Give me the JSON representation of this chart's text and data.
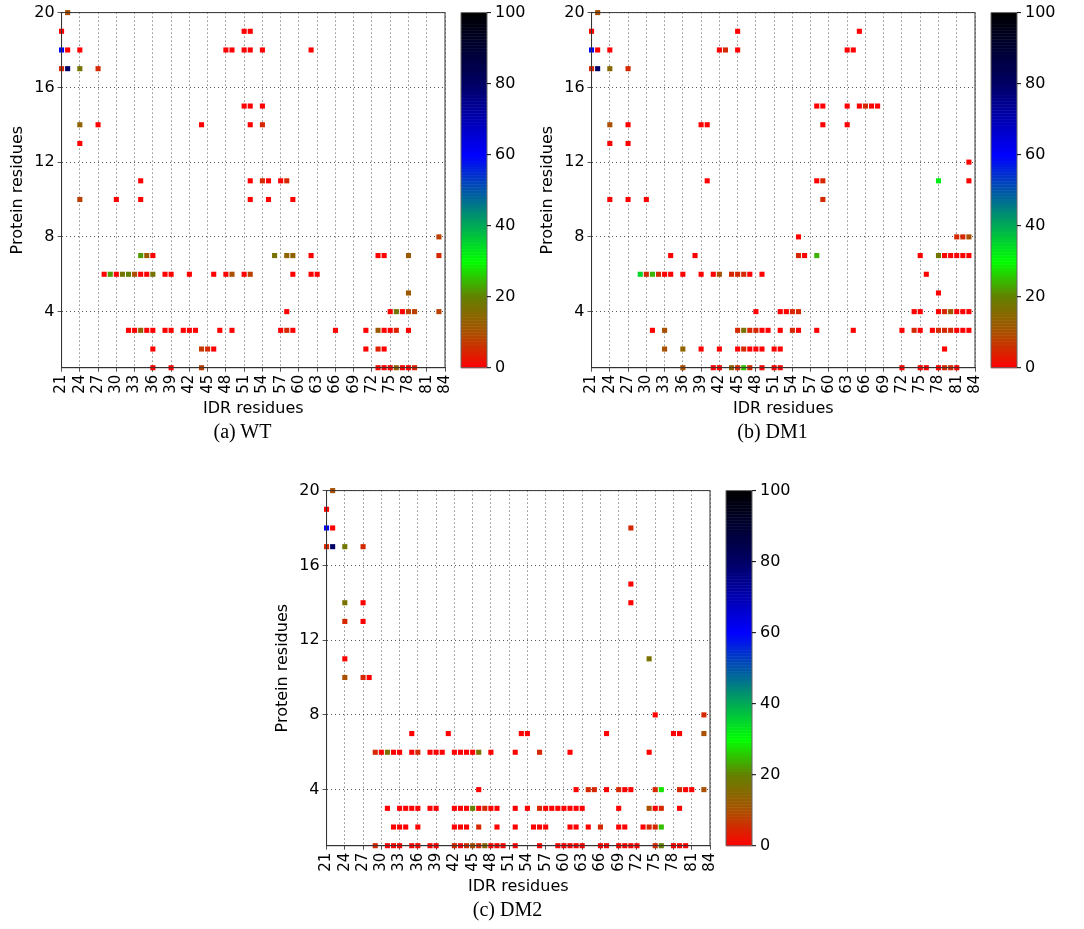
{
  "chart_data": [
    {
      "type": "scatter",
      "xlabel": "IDR residues",
      "ylabel": "Protein residues",
      "annotations": [
        "(a) WT"
      ],
      "marker": "square",
      "grid": true,
      "xlim": [
        21,
        84
      ],
      "xticks": [
        21,
        24,
        27,
        30,
        33,
        36,
        39,
        42,
        45,
        48,
        51,
        54,
        57,
        60,
        63,
        66,
        69,
        72,
        75,
        78,
        81,
        84
      ],
      "ylim": [
        1,
        20
      ],
      "yticks": [
        4,
        8,
        12,
        16,
        20
      ],
      "clim": [
        0,
        100
      ],
      "cticks": [
        0,
        20,
        40,
        60,
        80,
        100
      ],
      "x": [
        22,
        21,
        51,
        52,
        21,
        22,
        24,
        48,
        49,
        51,
        52,
        54,
        62,
        21,
        22,
        24,
        27,
        51,
        52,
        54,
        24,
        27,
        44,
        52,
        54,
        24,
        34,
        52,
        54,
        55,
        57,
        58,
        24,
        30,
        34,
        52,
        55,
        59,
        83,
        34,
        35,
        36,
        56,
        58,
        59,
        62,
        73,
        74,
        78,
        83,
        28,
        29,
        30,
        31,
        32,
        33,
        34,
        35,
        36,
        38,
        39,
        42,
        46,
        48,
        49,
        51,
        52,
        59,
        62,
        63,
        78,
        58,
        75,
        76,
        77,
        78,
        79,
        83,
        32,
        33,
        34,
        35,
        36,
        38,
        39,
        41,
        42,
        43,
        47,
        49,
        57,
        58,
        59,
        66,
        71,
        73,
        74,
        75,
        76,
        78,
        36,
        44,
        45,
        46,
        71,
        73,
        74,
        36,
        39,
        44,
        73,
        74,
        75,
        76,
        77,
        78,
        79
      ],
      "values": [
        20,
        19,
        19,
        19,
        18,
        18,
        18,
        18,
        18,
        18,
        18,
        18,
        18,
        17,
        17,
        17,
        17,
        15,
        15,
        15,
        14,
        14,
        14,
        14,
        14,
        13,
        11,
        11,
        11,
        11,
        11,
        11,
        10,
        10,
        10,
        10,
        10,
        10,
        8,
        7,
        7,
        7,
        7,
        7,
        7,
        7,
        7,
        7,
        7,
        7,
        6,
        6,
        6,
        6,
        6,
        6,
        6,
        6,
        6,
        6,
        6,
        6,
        6,
        6,
        6,
        6,
        6,
        6,
        6,
        6,
        5,
        4,
        4,
        4,
        4,
        4,
        4,
        4,
        3,
        3,
        3,
        3,
        3,
        3,
        3,
        3,
        3,
        3,
        3,
        3,
        3,
        3,
        3,
        3,
        3,
        3,
        3,
        3,
        3,
        3,
        2,
        2,
        2,
        2,
        2,
        2,
        2,
        1,
        1,
        1,
        1,
        1,
        1,
        1,
        1,
        1,
        1
      ],
      "cvalues": [
        10,
        0,
        0,
        0,
        60,
        0,
        0,
        0,
        0,
        0,
        0,
        0,
        0,
        5,
        80,
        18,
        5,
        0,
        0,
        0,
        14,
        0,
        0,
        0,
        5,
        0,
        0,
        0,
        5,
        0,
        0,
        5,
        8,
        0,
        0,
        0,
        0,
        0,
        8,
        22,
        12,
        0,
        17,
        14,
        14,
        0,
        0,
        0,
        12,
        5,
        0,
        22,
        0,
        18,
        20,
        10,
        0,
        0,
        17,
        0,
        0,
        0,
        0,
        0,
        10,
        0,
        8,
        0,
        0,
        0,
        12,
        0,
        0,
        18,
        0,
        8,
        8,
        8,
        0,
        0,
        14,
        0,
        0,
        0,
        0,
        0,
        0,
        0,
        0,
        0,
        0,
        5,
        0,
        0,
        0,
        12,
        0,
        0,
        4,
        0,
        0,
        7,
        5,
        0,
        0,
        4,
        0,
        0,
        0,
        8,
        0,
        0,
        0,
        14,
        0,
        0,
        4
      ]
    },
    {
      "type": "scatter",
      "xlabel": "IDR residues",
      "ylabel": "Protein residues",
      "annotations": [
        "(b) DM1"
      ],
      "marker": "square",
      "grid": true,
      "xlim": [
        21,
        84
      ],
      "xticks": [
        21,
        24,
        27,
        30,
        33,
        36,
        39,
        42,
        45,
        48,
        51,
        54,
        57,
        60,
        63,
        66,
        69,
        72,
        75,
        78,
        81,
        84
      ],
      "ylim": [
        1,
        20
      ],
      "yticks": [
        4,
        8,
        12,
        16,
        20
      ],
      "clim": [
        0,
        100
      ],
      "cticks": [
        0,
        20,
        40,
        60,
        80,
        100
      ],
      "x": [
        22,
        21,
        45,
        65,
        21,
        22,
        24,
        42,
        43,
        45,
        63,
        64,
        21,
        22,
        24,
        27,
        58,
        59,
        63,
        65,
        66,
        67,
        68,
        24,
        27,
        39,
        40,
        59,
        63,
        24,
        27,
        83,
        40,
        58,
        59,
        78,
        83,
        24,
        27,
        30,
        59,
        55,
        81,
        82,
        83,
        34,
        38,
        55,
        56,
        58,
        75,
        78,
        79,
        80,
        81,
        82,
        83,
        29,
        30,
        31,
        32,
        33,
        34,
        36,
        39,
        41,
        42,
        44,
        45,
        46,
        47,
        49,
        76,
        78,
        48,
        52,
        53,
        54,
        55,
        74,
        75,
        78,
        79,
        80,
        81,
        82,
        83,
        31,
        33,
        45,
        46,
        47,
        48,
        49,
        50,
        52,
        54,
        55,
        58,
        64,
        72,
        74,
        75,
        77,
        78,
        79,
        80,
        81,
        82,
        83,
        33,
        36,
        39,
        42,
        45,
        46,
        47,
        48,
        49,
        51,
        52,
        79,
        36,
        41,
        42,
        44,
        45,
        46,
        47,
        49,
        51,
        52,
        72,
        75,
        76,
        78,
        79,
        80,
        81
      ],
      "values": [
        20,
        19,
        19,
        19,
        18,
        18,
        18,
        18,
        18,
        18,
        18,
        18,
        17,
        17,
        17,
        17,
        15,
        15,
        15,
        15,
        15,
        15,
        15,
        14,
        14,
        14,
        14,
        14,
        14,
        13,
        13,
        12,
        11,
        11,
        11,
        11,
        11,
        10,
        10,
        10,
        10,
        8,
        8,
        8,
        8,
        7,
        7,
        7,
        7,
        7,
        7,
        7,
        7,
        7,
        7,
        7,
        7,
        6,
        6,
        6,
        6,
        6,
        6,
        6,
        6,
        6,
        6,
        6,
        6,
        6,
        6,
        6,
        6,
        5,
        4,
        4,
        4,
        4,
        4,
        4,
        4,
        4,
        4,
        4,
        4,
        4,
        4,
        3,
        3,
        3,
        3,
        3,
        3,
        3,
        3,
        3,
        3,
        3,
        3,
        3,
        3,
        3,
        3,
        3,
        3,
        3,
        3,
        3,
        3,
        3,
        2,
        2,
        2,
        2,
        2,
        2,
        2,
        2,
        2,
        2,
        2,
        2,
        1,
        1,
        1,
        1,
        1,
        1,
        1,
        1,
        1,
        1,
        1,
        1,
        1,
        1,
        1,
        1,
        1
      ],
      "cvalues": [
        10,
        0,
        0,
        0,
        60,
        0,
        0,
        0,
        5,
        0,
        0,
        0,
        5,
        80,
        15,
        5,
        0,
        0,
        0,
        0,
        5,
        0,
        0,
        10,
        0,
        0,
        0,
        0,
        0,
        0,
        0,
        0,
        0,
        0,
        5,
        32,
        0,
        0,
        0,
        0,
        5,
        0,
        5,
        5,
        10,
        0,
        0,
        5,
        0,
        24,
        0,
        18,
        0,
        0,
        0,
        0,
        0,
        35,
        5,
        24,
        5,
        0,
        0,
        0,
        0,
        0,
        10,
        5,
        5,
        5,
        0,
        0,
        0,
        0,
        0,
        0,
        0,
        5,
        5,
        0,
        0,
        0,
        5,
        12,
        0,
        0,
        0,
        0,
        10,
        5,
        17,
        5,
        5,
        0,
        0,
        0,
        5,
        0,
        0,
        0,
        0,
        5,
        0,
        0,
        5,
        5,
        5,
        0,
        0,
        0,
        10,
        14,
        0,
        0,
        0,
        5,
        0,
        0,
        0,
        0,
        0,
        0,
        10,
        0,
        0,
        14,
        5,
        25,
        5,
        0,
        0,
        0,
        0,
        0,
        0,
        0,
        5,
        5,
        0
      ]
    },
    {
      "type": "scatter",
      "xlabel": "IDR residues",
      "ylabel": "Protein residues",
      "annotations": [
        "(c) DM2"
      ],
      "marker": "square",
      "grid": true,
      "xlim": [
        21,
        84
      ],
      "xticks": [
        21,
        24,
        27,
        30,
        33,
        36,
        39,
        42,
        45,
        48,
        51,
        54,
        57,
        60,
        63,
        66,
        69,
        72,
        75,
        78,
        81,
        84
      ],
      "ylim": [
        1,
        20
      ],
      "yticks": [
        4,
        8,
        12,
        16,
        20
      ],
      "clim": [
        0,
        100
      ],
      "cticks": [
        0,
        20,
        40,
        60,
        80,
        100
      ],
      "x": [
        22,
        21,
        21,
        22,
        71,
        21,
        22,
        24,
        27,
        71,
        24,
        27,
        71,
        24,
        27,
        24,
        74,
        24,
        27,
        28,
        75,
        83,
        35,
        41,
        53,
        54,
        67,
        78,
        79,
        83,
        29,
        30,
        31,
        32,
        33,
        35,
        36,
        38,
        39,
        40,
        42,
        43,
        44,
        45,
        46,
        48,
        52,
        56,
        61,
        74,
        46,
        62,
        64,
        65,
        67,
        69,
        70,
        71,
        75,
        76,
        79,
        80,
        81,
        83,
        31,
        33,
        34,
        35,
        36,
        38,
        39,
        42,
        43,
        44,
        45,
        46,
        47,
        48,
        49,
        52,
        54,
        56,
        57,
        58,
        59,
        60,
        61,
        62,
        63,
        69,
        74,
        75,
        76,
        79,
        32,
        33,
        34,
        36,
        42,
        43,
        44,
        46,
        49,
        52,
        55,
        56,
        57,
        61,
        62,
        64,
        66,
        69,
        70,
        73,
        74,
        75,
        76,
        29,
        31,
        32,
        33,
        35,
        36,
        38,
        39,
        42,
        43,
        44,
        45,
        46,
        47,
        48,
        49,
        50,
        52,
        56,
        59,
        60,
        61,
        62,
        63,
        66,
        67,
        69,
        70,
        71,
        72,
        75,
        76,
        78,
        79,
        80
      ],
      "values": [
        20,
        19,
        18,
        18,
        18,
        17,
        17,
        17,
        17,
        15,
        14,
        14,
        14,
        13,
        13,
        11,
        11,
        10,
        10,
        10,
        8,
        8,
        7,
        7,
        7,
        7,
        7,
        7,
        7,
        7,
        6,
        6,
        6,
        6,
        6,
        6,
        6,
        6,
        6,
        6,
        6,
        6,
        6,
        6,
        6,
        6,
        6,
        6,
        6,
        6,
        4,
        4,
        4,
        4,
        4,
        4,
        4,
        4,
        4,
        4,
        4,
        4,
        4,
        4,
        3,
        3,
        3,
        3,
        3,
        3,
        3,
        3,
        3,
        3,
        3,
        3,
        3,
        3,
        3,
        3,
        3,
        3,
        3,
        3,
        3,
        3,
        3,
        3,
        3,
        3,
        3,
        3,
        3,
        3,
        2,
        2,
        2,
        2,
        2,
        2,
        2,
        2,
        2,
        2,
        2,
        2,
        2,
        2,
        2,
        2,
        2,
        2,
        2,
        2,
        2,
        2,
        2,
        1,
        1,
        1,
        1,
        1,
        1,
        1,
        1,
        1,
        1,
        1,
        1,
        1,
        1,
        1,
        1,
        1,
        1,
        1,
        1,
        1,
        1,
        1,
        1,
        1,
        1,
        1,
        1,
        1,
        1,
        1,
        1,
        1,
        1,
        1
      ],
      "cvalues": [
        10,
        0,
        60,
        0,
        5,
        5,
        80,
        18,
        5,
        0,
        17,
        0,
        0,
        5,
        0,
        0,
        17,
        10,
        5,
        0,
        0,
        5,
        0,
        0,
        0,
        0,
        0,
        0,
        0,
        10,
        5,
        0,
        17,
        0,
        0,
        0,
        5,
        0,
        0,
        0,
        0,
        0,
        0,
        0,
        17,
        0,
        0,
        5,
        0,
        0,
        0,
        0,
        5,
        5,
        0,
        5,
        0,
        0,
        5,
        28,
        5,
        0,
        0,
        10,
        0,
        0,
        0,
        0,
        0,
        0,
        0,
        0,
        0,
        0,
        20,
        0,
        5,
        0,
        0,
        0,
        0,
        5,
        0,
        0,
        0,
        0,
        0,
        0,
        0,
        0,
        10,
        0,
        5,
        0,
        0,
        0,
        0,
        0,
        0,
        0,
        0,
        5,
        0,
        0,
        0,
        0,
        0,
        0,
        0,
        0,
        5,
        0,
        0,
        0,
        5,
        5,
        25,
        5,
        0,
        0,
        0,
        0,
        0,
        0,
        0,
        5,
        0,
        5,
        10,
        5,
        15,
        0,
        0,
        0,
        0,
        0,
        0,
        0,
        0,
        0,
        0,
        0,
        0,
        0,
        0,
        0,
        0,
        5,
        20,
        0,
        0,
        0
      ]
    }
  ]
}
